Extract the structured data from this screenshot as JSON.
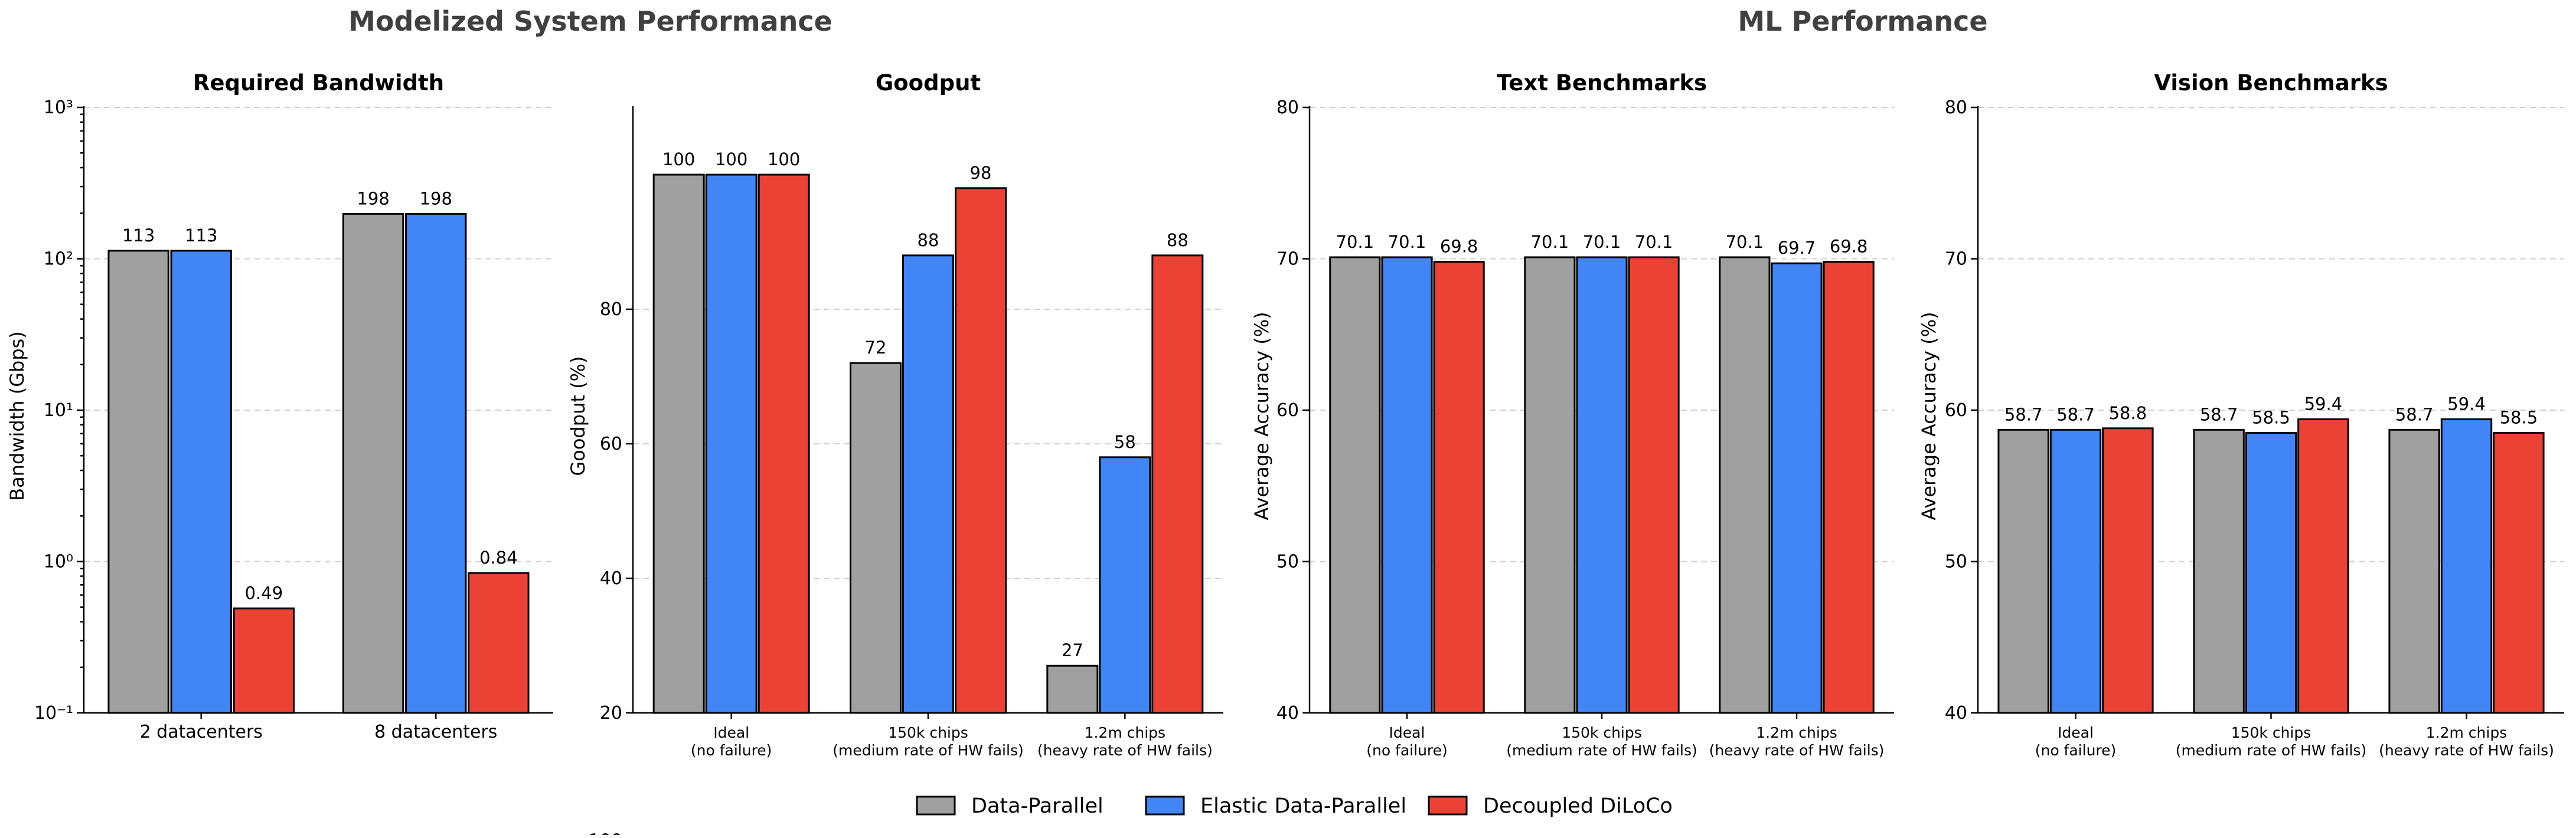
{
  "figure": {
    "super_titles": [
      "Modelized System Performance",
      "ML Performance"
    ]
  },
  "colors": {
    "Data-Parallel": "#a0a0a0",
    "Elastic Data-Parallel": "#4285f4",
    "Decoupled DiLoCo": "#ea4335"
  },
  "legend": {
    "placement": "bottom-center",
    "items": [
      "Data-Parallel",
      "Elastic Data-Parallel",
      "Decoupled DiLoCo"
    ]
  },
  "chart_data": [
    {
      "type": "bar",
      "title": "Required Bandwidth",
      "ylabel": "Bandwidth (Gbps)",
      "xlabel": "",
      "yscale": "log",
      "ylim": [
        0.1,
        1000
      ],
      "yticks": [
        "10⁻¹",
        "10⁰",
        "10¹",
        "10²",
        "10³"
      ],
      "grid": true,
      "categories": [
        [
          "2 datacenters"
        ],
        [
          "8 datacenters"
        ]
      ],
      "series": [
        {
          "name": "Data-Parallel",
          "values": [
            113,
            198
          ],
          "labels": [
            "113",
            "198"
          ]
        },
        {
          "name": "Elastic Data-Parallel",
          "values": [
            113,
            198
          ],
          "labels": [
            "113",
            "198"
          ]
        },
        {
          "name": "Decoupled DiLoCo",
          "values": [
            0.49,
            0.84
          ],
          "labels": [
            "0.49",
            "0.84"
          ]
        }
      ]
    },
    {
      "type": "bar",
      "title": "Goodput",
      "ylabel": "Goodput (%)",
      "xlabel": "",
      "yscale": "linear",
      "ylim": [
        20,
        110
      ],
      "yticks": [
        "20",
        "40",
        "60",
        "80",
        "100"
      ],
      "grid": true,
      "categories": [
        [
          "Ideal",
          "(no failure)"
        ],
        [
          "150k chips",
          "(medium rate of HW fails)"
        ],
        [
          "1.2m chips",
          "(heavy rate of HW fails)"
        ]
      ],
      "series": [
        {
          "name": "Data-Parallel",
          "values": [
            100,
            72,
            27
          ],
          "labels": [
            "100",
            "72",
            "27"
          ]
        },
        {
          "name": "Elastic Data-Parallel",
          "values": [
            100,
            88,
            58
          ],
          "labels": [
            "100",
            "88",
            "58"
          ]
        },
        {
          "name": "Decoupled DiLoCo",
          "values": [
            100,
            98,
            88
          ],
          "labels": [
            "100",
            "98",
            "88"
          ]
        }
      ]
    },
    {
      "type": "bar",
      "title": "Text Benchmarks",
      "ylabel": "Average Accuracy (%)",
      "xlabel": "",
      "yscale": "linear",
      "ylim": [
        40,
        80
      ],
      "yticks": [
        "40",
        "50",
        "60",
        "70",
        "80"
      ],
      "grid": true,
      "categories": [
        [
          "Ideal",
          "(no failure)"
        ],
        [
          "150k chips",
          "(medium rate of HW fails)"
        ],
        [
          "1.2m chips",
          "(heavy rate of HW fails)"
        ]
      ],
      "series": [
        {
          "name": "Data-Parallel",
          "values": [
            70.1,
            70.1,
            70.1
          ],
          "labels": [
            "70.1",
            "70.1",
            "70.1"
          ]
        },
        {
          "name": "Elastic Data-Parallel",
          "values": [
            70.1,
            70.1,
            69.7
          ],
          "labels": [
            "70.1",
            "70.1",
            "69.7"
          ]
        },
        {
          "name": "Decoupled DiLoCo",
          "values": [
            69.8,
            70.1,
            69.8
          ],
          "labels": [
            "69.8",
            "70.1",
            "69.8"
          ]
        }
      ]
    },
    {
      "type": "bar",
      "title": "Vision Benchmarks",
      "ylabel": "Average Accuracy (%)",
      "xlabel": "",
      "yscale": "linear",
      "ylim": [
        40,
        80
      ],
      "yticks": [
        "40",
        "50",
        "60",
        "70",
        "80"
      ],
      "grid": true,
      "categories": [
        [
          "Ideal",
          "(no failure)"
        ],
        [
          "150k chips",
          "(medium rate of HW fails)"
        ],
        [
          "1.2m chips",
          "(heavy rate of HW fails)"
        ]
      ],
      "series": [
        {
          "name": "Data-Parallel",
          "values": [
            58.7,
            58.7,
            58.7
          ],
          "labels": [
            "58.7",
            "58.7",
            "58.7"
          ]
        },
        {
          "name": "Elastic Data-Parallel",
          "values": [
            58.7,
            58.5,
            59.4
          ],
          "labels": [
            "58.7",
            "58.5",
            "59.4"
          ]
        },
        {
          "name": "Decoupled DiLoCo",
          "values": [
            58.8,
            59.4,
            58.5
          ],
          "labels": [
            "58.8",
            "59.4",
            "58.5"
          ]
        }
      ]
    }
  ]
}
